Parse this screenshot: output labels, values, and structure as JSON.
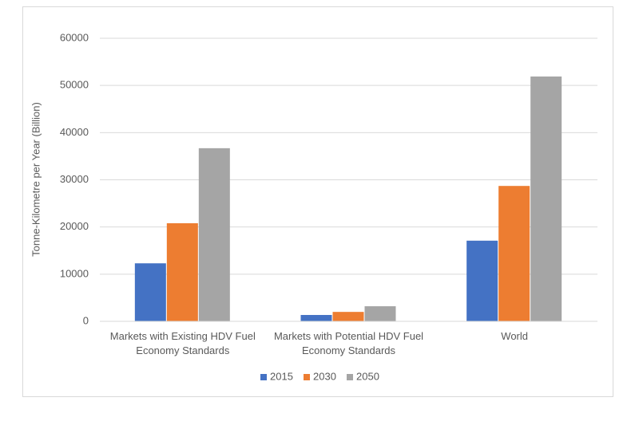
{
  "chart_data": {
    "type": "bar",
    "y_label": "Tonne-Kilometre per Year (Billion)",
    "categories": [
      "Markets with Existing HDV Fuel Economy Standards",
      "Markets with Potential HDV Fuel Economy Standards",
      "World"
    ],
    "series": [
      {
        "name": "2015",
        "color": "#4472c4",
        "values": [
          12300,
          1350,
          17100
        ]
      },
      {
        "name": "2030",
        "color": "#ed7d31",
        "values": [
          20800,
          2000,
          28700
        ]
      },
      {
        "name": "2050",
        "color": "#a5a5a5",
        "values": [
          36700,
          3200,
          51900
        ]
      }
    ],
    "ylim": [
      0,
      60000
    ],
    "yticks": [
      0,
      10000,
      20000,
      30000,
      40000,
      50000,
      60000
    ],
    "grid": true,
    "legend": "bottom"
  }
}
